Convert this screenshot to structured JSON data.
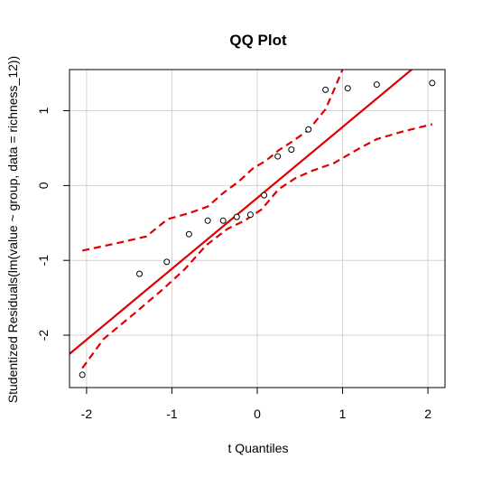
{
  "chart_data": {
    "type": "scatter",
    "title": "QQ Plot",
    "xlabel": "t Quantiles",
    "ylabel": "Studentized Residuals(lm(value ~ group, data = richness_12))",
    "xlim": [
      -2.2,
      2.2
    ],
    "ylim": [
      -2.7,
      1.55
    ],
    "xticks": [
      -2,
      -1,
      0,
      1,
      2
    ],
    "yticks": [
      -2,
      -1,
      0,
      1
    ],
    "grid": true,
    "points": [
      {
        "x": -2.05,
        "y": -2.53
      },
      {
        "x": -1.38,
        "y": -1.18
      },
      {
        "x": -1.06,
        "y": -1.02
      },
      {
        "x": -0.8,
        "y": -0.65
      },
      {
        "x": -0.58,
        "y": -0.47
      },
      {
        "x": -0.4,
        "y": -0.47
      },
      {
        "x": -0.24,
        "y": -0.42
      },
      {
        "x": -0.08,
        "y": -0.39
      },
      {
        "x": 0.08,
        "y": -0.13
      },
      {
        "x": 0.24,
        "y": 0.39
      },
      {
        "x": 0.4,
        "y": 0.48
      },
      {
        "x": 0.6,
        "y": 0.75
      },
      {
        "x": 0.8,
        "y": 1.28
      },
      {
        "x": 1.06,
        "y": 1.3
      },
      {
        "x": 1.4,
        "y": 1.35
      },
      {
        "x": 2.05,
        "y": 1.37
      }
    ],
    "reference_line": {
      "x": [
        -2.2,
        2.2
      ],
      "y": [
        -2.25,
        1.92
      ],
      "color": "#e00000"
    },
    "envelope_upper": {
      "x": [
        -2.05,
        -1.6,
        -1.3,
        -1.05,
        -0.8,
        -0.58,
        -0.4,
        -0.22,
        -0.05,
        0.1,
        0.25,
        0.4,
        0.6,
        0.8,
        0.9,
        1.0
      ],
      "y": [
        -0.87,
        -0.76,
        -0.68,
        -0.45,
        -0.37,
        -0.28,
        -0.1,
        0.05,
        0.23,
        0.33,
        0.47,
        0.58,
        0.74,
        1.02,
        1.28,
        1.55
      ],
      "color": "#e00000"
    },
    "envelope_lower": {
      "x": [
        -2.05,
        -1.8,
        -1.45,
        -1.1,
        -0.85,
        -0.6,
        -0.35,
        -0.15,
        0.05,
        0.25,
        0.45,
        0.65,
        0.9,
        1.2,
        1.4,
        1.7,
        2.05
      ],
      "y": [
        -2.44,
        -2.05,
        -1.72,
        -1.38,
        -1.12,
        -0.8,
        -0.58,
        -0.47,
        -0.32,
        -0.05,
        0.1,
        0.2,
        0.3,
        0.5,
        0.62,
        0.72,
        0.82
      ],
      "color": "#e00000"
    }
  }
}
